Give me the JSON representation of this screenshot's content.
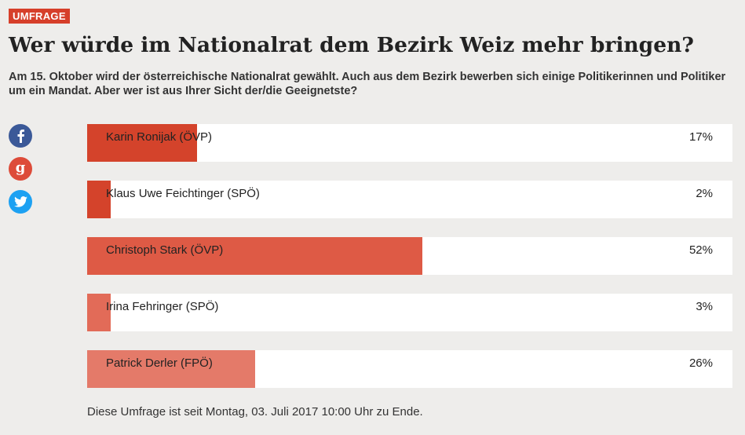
{
  "badge": "UMFRAGE",
  "title": "Wer würde im Nationalrat dem Bezirk Weiz mehr bringen?",
  "intro": "Am 15. Oktober wird der österreichische Nationalrat gewählt. Auch aus dem Bezirk bewerben sich einige Politikerinnen und Politiker um ein Mandat. Aber wer ist aus Ihrer Sicht der/die Geeignetste?",
  "social": {
    "facebook": "facebook-icon",
    "google": "google-plus-icon",
    "twitter": "twitter-icon"
  },
  "options": [
    {
      "label": "Karin Ronijak (ÖVP)",
      "percent_text": "17%",
      "fraction": 0.17,
      "color": "#d4432b"
    },
    {
      "label": "Klaus Uwe Feichtinger (SPÖ)",
      "percent_text": "2%",
      "fraction": 0.02,
      "color": "#d4432b"
    },
    {
      "label": "Christoph Stark (ÖVP)",
      "percent_text": "52%",
      "fraction": 0.52,
      "color": "#de5a45"
    },
    {
      "label": "Irina Fehringer (SPÖ)",
      "percent_text": "3%",
      "fraction": 0.03,
      "color": "#e26b58"
    },
    {
      "label": "Patrick Derler (FPÖ)",
      "percent_text": "26%",
      "fraction": 0.26,
      "color": "#e47a69"
    }
  ],
  "footer": "Diese Umfrage ist seit Montag, 03. Juli 2017 10:00 Uhr zu Ende."
}
